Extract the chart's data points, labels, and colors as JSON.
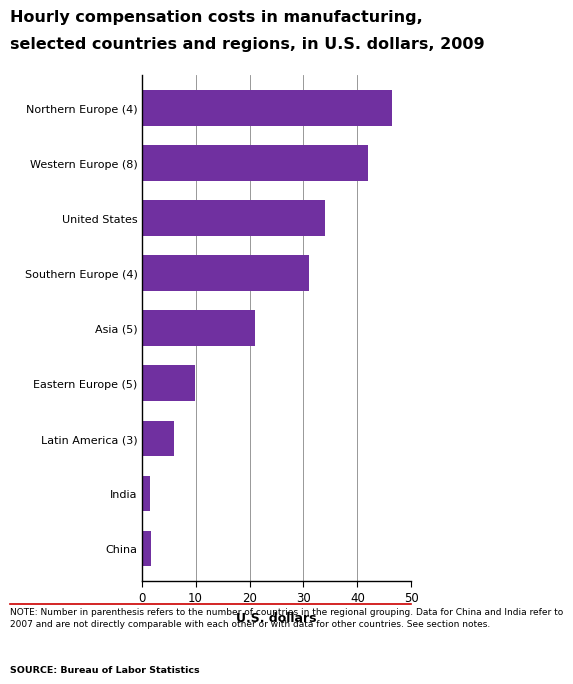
{
  "title_line1": "Hourly compensation costs in manufacturing,",
  "title_line2": "selected countries and regions, in U.S. dollars, 2009",
  "categories": [
    "China",
    "India",
    "Latin America (3)",
    "Eastern Europe (5)",
    "Asia (5)",
    "Southern Europe (4)",
    "United States",
    "Western Europe (8)",
    "Northern Europe (4)"
  ],
  "values": [
    1.74,
    1.46,
    6.0,
    9.8,
    21.0,
    31.0,
    34.0,
    42.0,
    46.5
  ],
  "bar_color": "#7030a0",
  "xlabel": "U.S. dollars",
  "xlim": [
    0,
    50
  ],
  "xticks": [
    0,
    10,
    20,
    30,
    40,
    50
  ],
  "note_text": "NOTE: Number in parenthesis refers to the number of countries in the regional grouping. Data for China and India refer to\n2007 and are not directly comparable with each other or with data for other countries. See section notes.",
  "source_text": "SOURCE: Bureau of Labor Statistics",
  "title_fontsize": 11.5,
  "label_fontsize": 8.0,
  "xlabel_fontsize": 9.0,
  "tick_fontsize": 8.5,
  "note_fontsize": 6.5,
  "source_fontsize": 6.8,
  "background_color": "#ffffff",
  "grid_color": "#888888",
  "separator_color": "#cc0000"
}
